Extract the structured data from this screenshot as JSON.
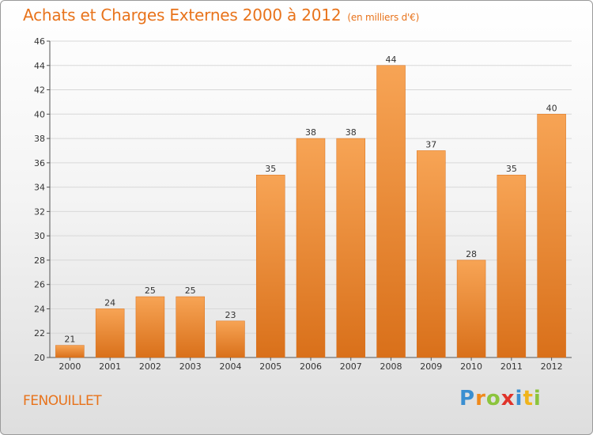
{
  "title": "Achats et Charges Externes 2000 à 2012",
  "subtitle": "(en milliers d'€)",
  "commune": "FENOUILLET",
  "logo": {
    "letters": [
      "P",
      "r",
      "o",
      "x",
      "i",
      "t",
      "i"
    ]
  },
  "colors": {
    "bar": "#f0892f",
    "bar_light": "#f7a455",
    "bar_dark": "#d9701a",
    "text": "#e8731b",
    "grid": "#d8d8d8",
    "axis": "#555555"
  },
  "chart_data": {
    "type": "bar",
    "categories": [
      "2000",
      "2001",
      "2002",
      "2003",
      "2004",
      "2005",
      "2006",
      "2007",
      "2008",
      "2009",
      "2010",
      "2011",
      "2012"
    ],
    "values": [
      21,
      24,
      25,
      25,
      23,
      35,
      38,
      38,
      44,
      37,
      28,
      35,
      40
    ],
    "ylim": [
      20,
      46
    ],
    "yticks": [
      20,
      22,
      24,
      26,
      28,
      30,
      32,
      34,
      36,
      38,
      40,
      42,
      44,
      46
    ],
    "grid": true,
    "xlabel": "",
    "ylabel": ""
  }
}
